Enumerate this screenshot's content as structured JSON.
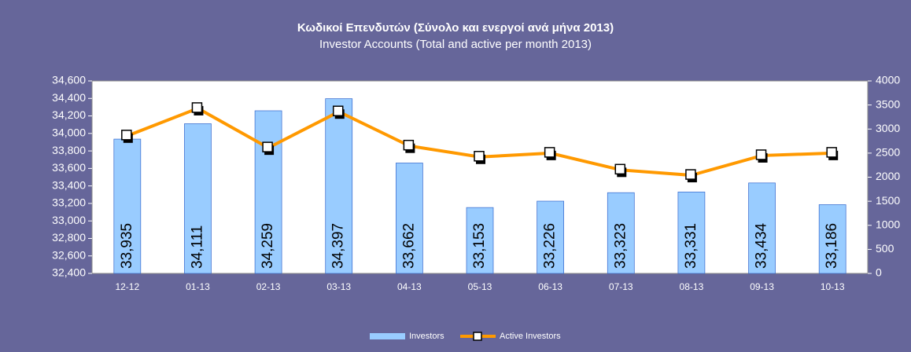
{
  "chart_data": {
    "type": "bar_line",
    "title": "Κωδικοί Επενδυτών (Σύνολο και ενεργοί ανά μήνα 2013)",
    "subtitle": "Investor Accounts (Total and active per month 2013)",
    "categories": [
      "12-12",
      "01-13",
      "02-13",
      "03-13",
      "04-13",
      "05-13",
      "06-13",
      "07-13",
      "08-13",
      "09-13",
      "10-13"
    ],
    "series": [
      {
        "name": "Investors",
        "type": "bar",
        "color": "#99ccff",
        "axis": "y",
        "values": [
          33935,
          34111,
          34259,
          34397,
          33662,
          33153,
          33226,
          33323,
          33331,
          33434,
          33186
        ],
        "value_labels": [
          "33,935",
          "34,111",
          "34,259",
          "34,397",
          "33,662",
          "33,153",
          "33,226",
          "33,323",
          "33,331",
          "33,434",
          "33,186"
        ]
      },
      {
        "name": "Active Investors",
        "type": "line",
        "color": "#ff9900",
        "axis": "y2",
        "values": [
          2860,
          3430,
          2610,
          3360,
          2650,
          2420,
          2500,
          2150,
          2040,
          2450,
          2500
        ]
      }
    ],
    "ylim": [
      32400,
      34600
    ],
    "yticks": [
      {
        "value": 32400,
        "label": "32,400"
      },
      {
        "value": 32600,
        "label": "32,600"
      },
      {
        "value": 32800,
        "label": "32,800"
      },
      {
        "value": 33000,
        "label": "33,000"
      },
      {
        "value": 33200,
        "label": "33,200"
      },
      {
        "value": 33400,
        "label": "33,400"
      },
      {
        "value": 33600,
        "label": "33,600"
      },
      {
        "value": 33800,
        "label": "33,800"
      },
      {
        "value": 34000,
        "label": "34,000"
      },
      {
        "value": 34200,
        "label": "34,200"
      },
      {
        "value": 34400,
        "label": "34,400"
      },
      {
        "value": 34600,
        "label": "34,600"
      }
    ],
    "y2lim": [
      0,
      4000
    ],
    "y2ticks": [
      0,
      500,
      1000,
      1500,
      2000,
      2500,
      3000,
      3500,
      4000
    ],
    "legend": "bottom"
  }
}
